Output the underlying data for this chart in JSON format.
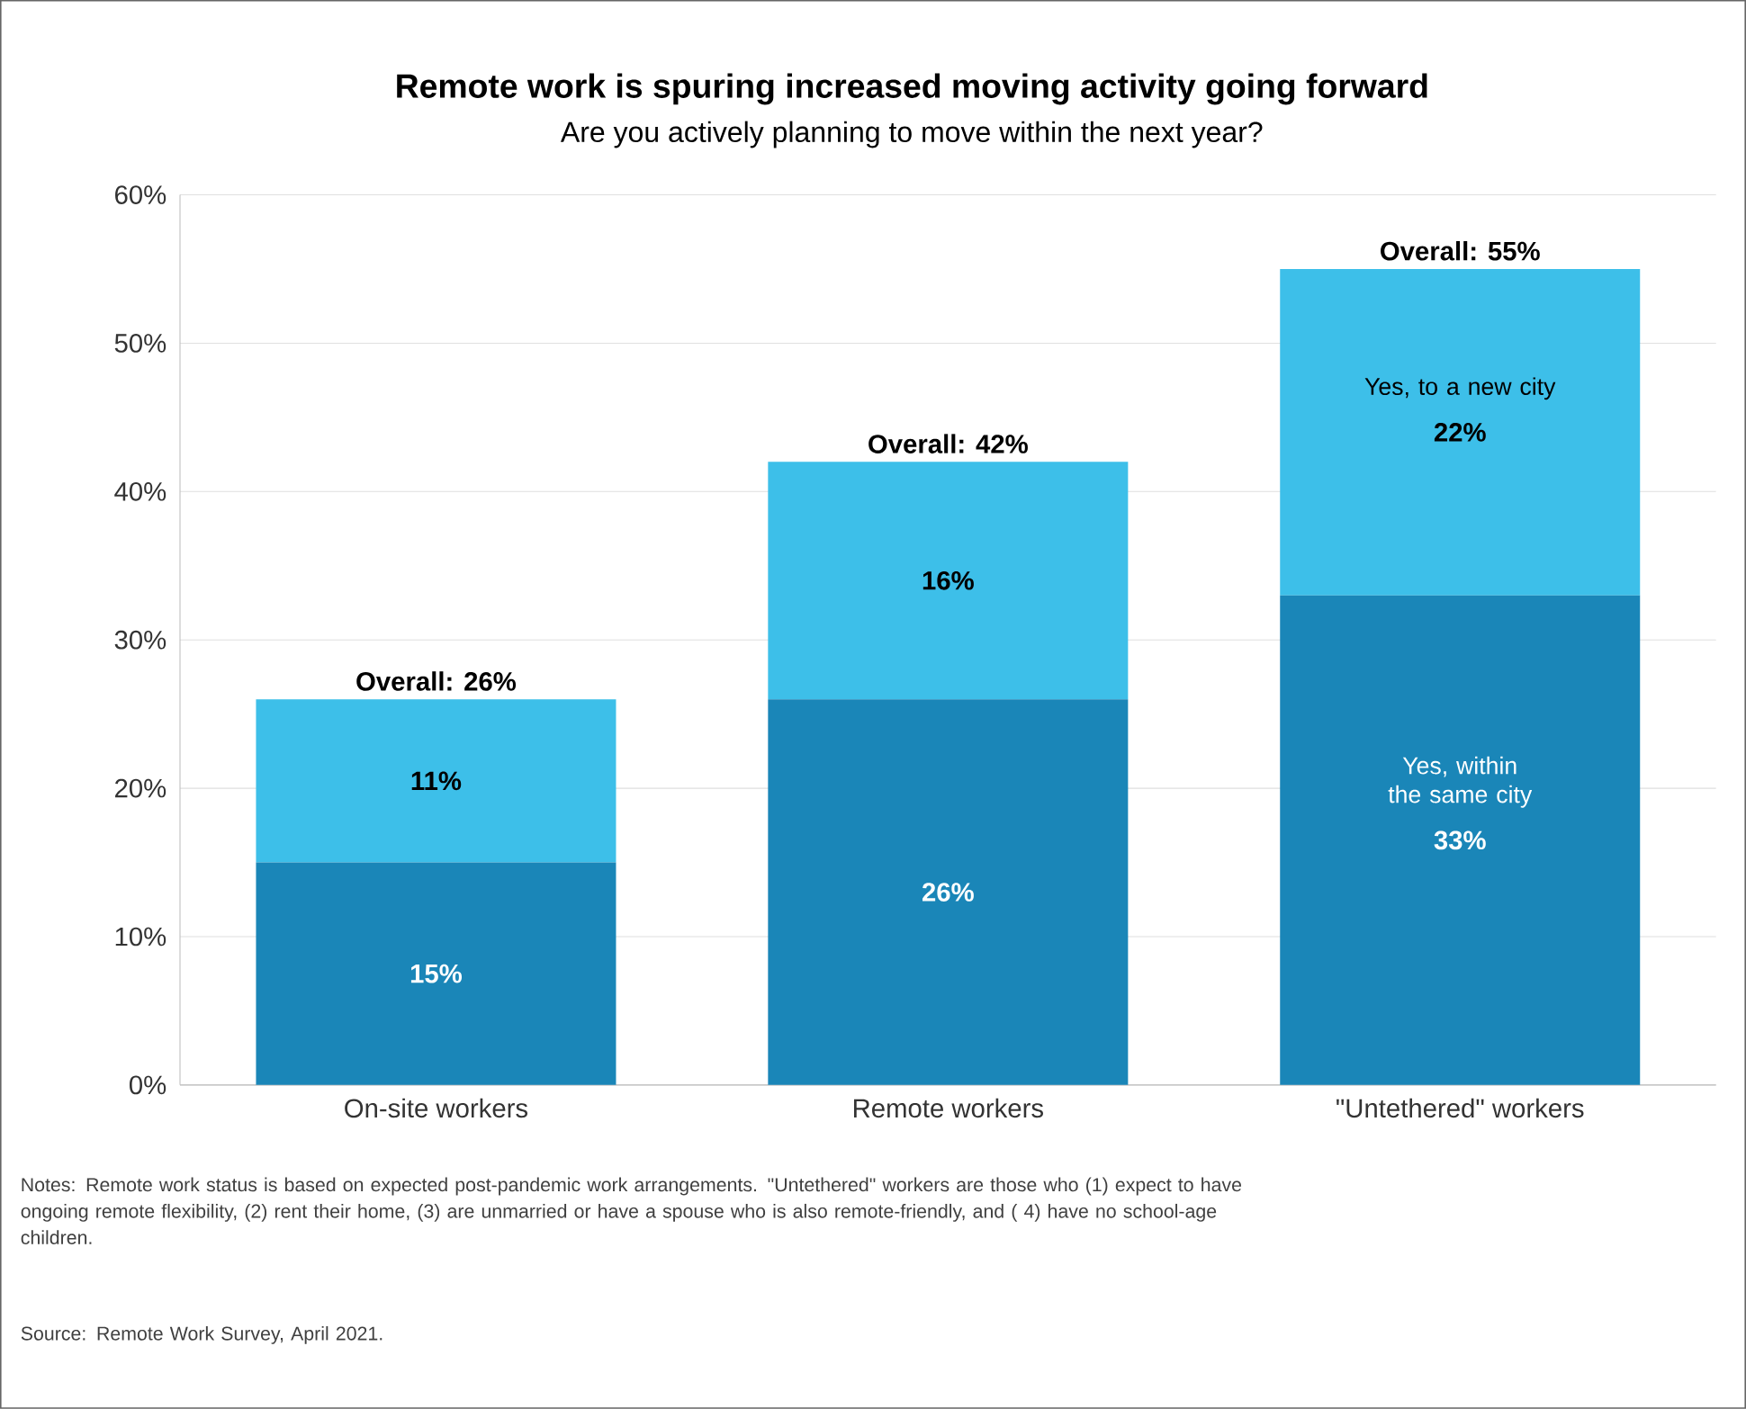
{
  "chart_data": {
    "type": "bar",
    "stacked": true,
    "title": "Remote work is spuring increased moving activity going forward",
    "subtitle": "Are you actively planning to move within the next year?",
    "categories": [
      "On-site workers",
      "Remote workers",
      "\"Untethered\" workers"
    ],
    "series": [
      {
        "name": "Yes, within the same city",
        "color": "#1a86b8",
        "values": [
          15,
          26,
          33
        ],
        "value_labels": [
          "15%",
          "26%",
          "33%"
        ]
      },
      {
        "name": "Yes, to a new city",
        "color": "#3dbfe9",
        "values": [
          11,
          16,
          22
        ],
        "value_labels": [
          "11%",
          "16%",
          "22%"
        ]
      }
    ],
    "totals": [
      "Overall: 26%",
      "Overall: 42%",
      "Overall: 55%"
    ],
    "ylim": [
      0,
      60
    ],
    "yticks": [
      {
        "value": 0,
        "label": "0%"
      },
      {
        "value": 10,
        "label": "10%"
      },
      {
        "value": 20,
        "label": "20%"
      },
      {
        "value": 30,
        "label": "30%"
      },
      {
        "value": 40,
        "label": "40%"
      },
      {
        "value": 50,
        "label": "50%"
      },
      {
        "value": 60,
        "label": "60%"
      }
    ],
    "grid": "y",
    "annotations": [
      "Notes: Remote work status is based on expected post-pandemic work arrangements. \"Untethered\" workers are those who (1) expect to have ongoing remote flexibility, (2) rent their home, (3) are unmarried or have a spouse who is also remote-friendly, and ( 4) have no school-age children.",
      "Source: Remote Work Survey, April 2021."
    ]
  }
}
